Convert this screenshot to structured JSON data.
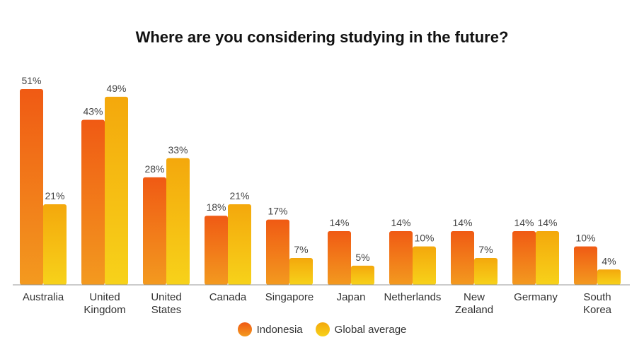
{
  "chart_data": {
    "type": "bar",
    "title": "Where are you considering studying in the future?",
    "categories": [
      [
        "Australia"
      ],
      [
        "United",
        "Kingdom"
      ],
      [
        "United",
        "States"
      ],
      [
        "Canada"
      ],
      [
        "Singapore"
      ],
      [
        "Japan"
      ],
      [
        "Netherlands"
      ],
      [
        "New",
        "Zealand"
      ],
      [
        "Germany"
      ],
      [
        "South",
        "Korea"
      ]
    ],
    "series": [
      {
        "name": "Indonesia",
        "values": [
          51,
          43,
          28,
          18,
          17,
          14,
          14,
          14,
          14,
          10
        ],
        "color": "#f05a14",
        "color_end": "#f39a1f"
      },
      {
        "name": "Global average",
        "values": [
          21,
          49,
          33,
          21,
          7,
          5,
          10,
          7,
          14,
          4
        ],
        "color": "#f4a80c",
        "color_end": "#f7d21a"
      }
    ],
    "value_suffix": "%",
    "ylim": [
      0,
      51
    ],
    "legend_position": "bottom",
    "grid": false
  }
}
